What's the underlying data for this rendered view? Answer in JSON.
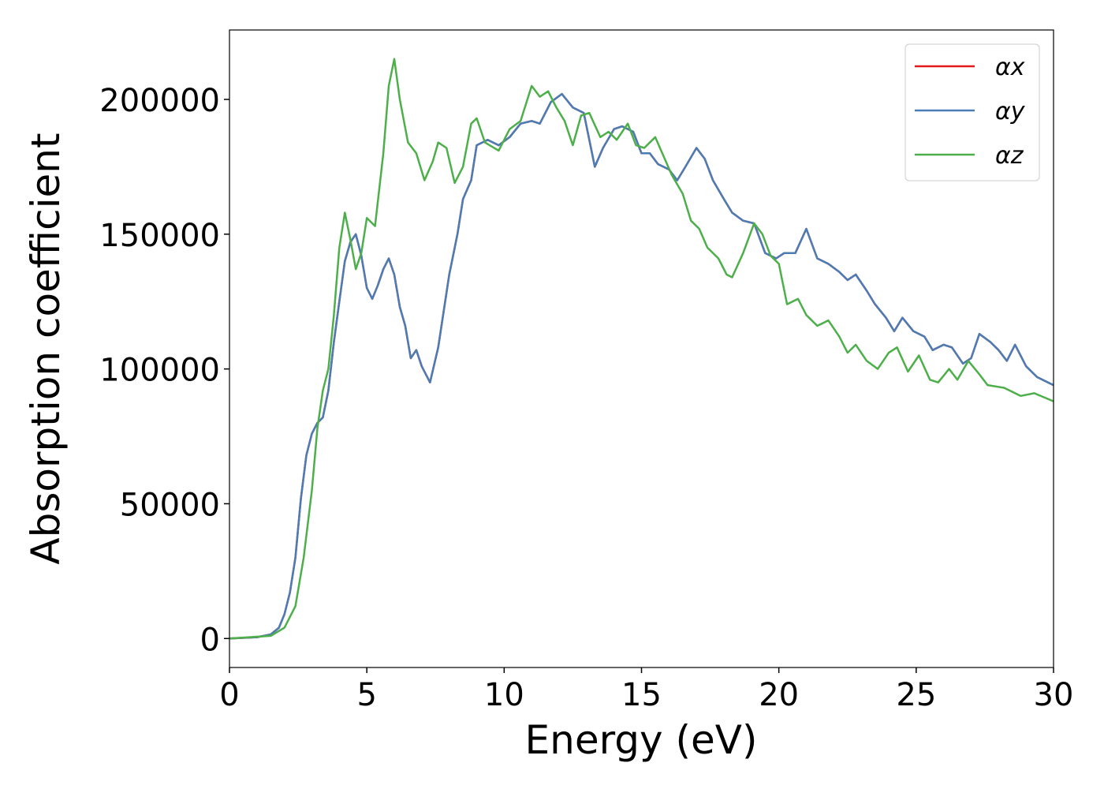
{
  "chart_data": {
    "type": "line",
    "xlabel": "Energy (eV)",
    "ylabel": "Absorption coefficient",
    "xlim": [
      0,
      30
    ],
    "ylim": [
      -10750,
      225750
    ],
    "xticks": [
      0,
      5,
      10,
      15,
      20,
      25,
      30
    ],
    "yticks": [
      0,
      50000,
      100000,
      150000,
      200000
    ],
    "grid": false,
    "legend": "upper right",
    "series": [
      {
        "name": "αx",
        "color": "#e41a1c",
        "x": [
          0,
          1,
          1.5,
          1.8,
          2.0,
          2.2,
          2.4,
          2.6,
          2.8,
          3.0,
          3.2,
          3.4,
          3.6,
          3.8,
          4.0,
          4.2,
          4.4,
          4.6,
          4.8,
          5.0,
          5.2,
          5.4,
          5.6,
          5.8,
          6.0,
          6.2,
          6.4,
          6.6,
          6.8,
          7.0,
          7.3,
          7.6,
          8.0,
          8.3,
          8.5,
          8.8,
          9.0,
          9.4,
          9.8,
          10.2,
          10.6,
          11.0,
          11.3,
          11.7,
          12.1,
          12.5,
          12.9,
          13.1,
          13.3,
          13.6,
          14.0,
          14.3,
          14.7,
          15.0,
          15.3,
          15.6,
          16.0,
          16.3,
          16.6,
          17.0,
          17.3,
          17.6,
          18.0,
          18.3,
          18.7,
          19.1,
          19.5,
          19.9,
          20.2,
          20.6,
          21.0,
          21.4,
          21.8,
          22.2,
          22.5,
          22.8,
          23.2,
          23.5,
          23.9,
          24.2,
          24.5,
          24.9,
          25.3,
          25.6,
          26.0,
          26.3,
          26.7,
          27.0,
          27.3,
          27.7,
          28.0,
          28.3,
          28.6,
          29.0,
          29.4,
          29.8,
          30.0
        ],
        "values": [
          0,
          500,
          1500,
          4000,
          9000,
          17000,
          30000,
          52000,
          68000,
          76000,
          80000,
          82000,
          92000,
          110000,
          125000,
          140000,
          147000,
          150000,
          142000,
          130000,
          126000,
          131000,
          137000,
          141000,
          135000,
          123000,
          116000,
          104000,
          107000,
          101000,
          95000,
          108000,
          135000,
          150000,
          163000,
          170000,
          183000,
          185000,
          183000,
          186000,
          191000,
          192000,
          191000,
          199000,
          202000,
          197000,
          195000,
          185000,
          175000,
          182000,
          189000,
          190000,
          188000,
          180000,
          180000,
          176000,
          174000,
          170000,
          175000,
          182000,
          178000,
          170000,
          163000,
          158000,
          155000,
          154000,
          143000,
          141000,
          143000,
          143000,
          152000,
          141000,
          139000,
          136000,
          133000,
          135000,
          129000,
          124000,
          119000,
          114000,
          119000,
          114000,
          112000,
          107000,
          109000,
          108000,
          102000,
          104000,
          113000,
          110000,
          107000,
          103000,
          109000,
          101000,
          97000,
          95000,
          94000
        ]
      },
      {
        "name": "αy",
        "color": "#4a7db5",
        "x": [
          0,
          1,
          1.5,
          1.8,
          2.0,
          2.2,
          2.4,
          2.6,
          2.8,
          3.0,
          3.2,
          3.4,
          3.6,
          3.8,
          4.0,
          4.2,
          4.4,
          4.6,
          4.8,
          5.0,
          5.2,
          5.4,
          5.6,
          5.8,
          6.0,
          6.2,
          6.4,
          6.6,
          6.8,
          7.0,
          7.3,
          7.6,
          8.0,
          8.3,
          8.5,
          8.8,
          9.0,
          9.4,
          9.8,
          10.2,
          10.6,
          11.0,
          11.3,
          11.7,
          12.1,
          12.5,
          12.9,
          13.1,
          13.3,
          13.6,
          14.0,
          14.3,
          14.7,
          15.0,
          15.3,
          15.6,
          16.0,
          16.3,
          16.6,
          17.0,
          17.3,
          17.6,
          18.0,
          18.3,
          18.7,
          19.1,
          19.5,
          19.9,
          20.2,
          20.6,
          21.0,
          21.4,
          21.8,
          22.2,
          22.5,
          22.8,
          23.2,
          23.5,
          23.9,
          24.2,
          24.5,
          24.9,
          25.3,
          25.6,
          26.0,
          26.3,
          26.7,
          27.0,
          27.3,
          27.7,
          28.0,
          28.3,
          28.6,
          29.0,
          29.4,
          29.8,
          30.0
        ],
        "values": [
          0,
          500,
          1500,
          4000,
          9000,
          17000,
          30000,
          52000,
          68000,
          76000,
          80000,
          82000,
          92000,
          110000,
          125000,
          140000,
          147000,
          150000,
          142000,
          130000,
          126000,
          131000,
          137000,
          141000,
          135000,
          123000,
          116000,
          104000,
          107000,
          101000,
          95000,
          108000,
          135000,
          150000,
          163000,
          170000,
          183000,
          185000,
          183000,
          186000,
          191000,
          192000,
          191000,
          199000,
          202000,
          197000,
          195000,
          185000,
          175000,
          182000,
          189000,
          190000,
          188000,
          180000,
          180000,
          176000,
          174000,
          170000,
          175000,
          182000,
          178000,
          170000,
          163000,
          158000,
          155000,
          154000,
          143000,
          141000,
          143000,
          143000,
          152000,
          141000,
          139000,
          136000,
          133000,
          135000,
          129000,
          124000,
          119000,
          114000,
          119000,
          114000,
          112000,
          107000,
          109000,
          108000,
          102000,
          104000,
          113000,
          110000,
          107000,
          103000,
          109000,
          101000,
          97000,
          95000,
          94000
        ]
      },
      {
        "name": "αz",
        "color": "#4daf4a",
        "x": [
          0,
          1.5,
          2.0,
          2.4,
          2.7,
          3.0,
          3.2,
          3.4,
          3.6,
          3.8,
          4.0,
          4.2,
          4.4,
          4.6,
          4.8,
          5.0,
          5.3,
          5.6,
          5.8,
          6.0,
          6.2,
          6.5,
          6.8,
          7.1,
          7.4,
          7.6,
          7.9,
          8.2,
          8.5,
          8.8,
          9.0,
          9.3,
          9.8,
          10.2,
          10.6,
          11.0,
          11.3,
          11.6,
          11.9,
          12.2,
          12.5,
          12.8,
          13.1,
          13.5,
          13.8,
          14.1,
          14.5,
          14.8,
          15.1,
          15.5,
          15.8,
          16.1,
          16.5,
          16.8,
          17.1,
          17.4,
          17.8,
          18.1,
          18.3,
          18.7,
          19.1,
          19.4,
          19.7,
          20.0,
          20.3,
          20.7,
          21.0,
          21.4,
          21.8,
          22.2,
          22.5,
          22.8,
          23.2,
          23.6,
          24.0,
          24.3,
          24.7,
          25.1,
          25.5,
          25.8,
          26.2,
          26.5,
          26.9,
          27.3,
          27.6,
          28.2,
          28.8,
          29.3,
          30.0
        ],
        "values": [
          0,
          1000,
          4000,
          12000,
          30000,
          55000,
          78000,
          92000,
          100000,
          120000,
          145000,
          158000,
          148000,
          137000,
          143000,
          156000,
          153000,
          180000,
          205000,
          215000,
          200000,
          184000,
          180000,
          170000,
          177000,
          184000,
          182000,
          169000,
          175000,
          191000,
          193000,
          184000,
          181000,
          189000,
          192000,
          205000,
          201000,
          203000,
          197000,
          192000,
          183000,
          194000,
          195000,
          186000,
          188000,
          185000,
          191000,
          183000,
          182000,
          186000,
          179000,
          172000,
          165000,
          155000,
          152000,
          145000,
          141000,
          135000,
          134000,
          143000,
          154000,
          150000,
          142000,
          139000,
          124000,
          126000,
          120000,
          116000,
          118000,
          112000,
          106000,
          109000,
          103000,
          100000,
          106000,
          108000,
          99000,
          105000,
          96000,
          95000,
          100000,
          96000,
          103000,
          98000,
          94000,
          93000,
          90000,
          91000,
          88000
        ]
      }
    ]
  }
}
